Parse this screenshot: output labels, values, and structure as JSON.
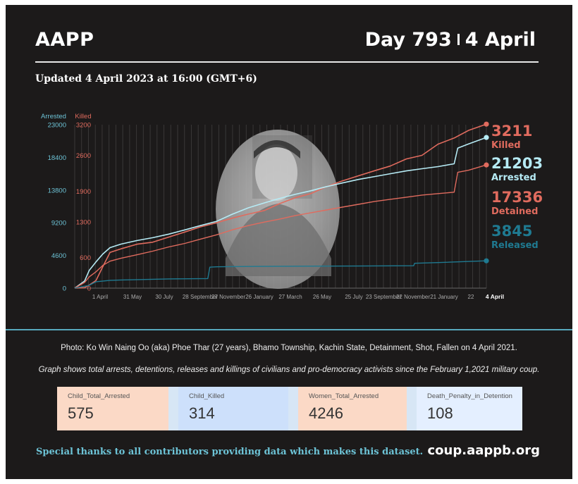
{
  "header": {
    "org": "AAPP",
    "day_label": "Day 793",
    "date_label": "4 April",
    "updated": "Updated 4 April 2023 at 16:00 (GMT+6)"
  },
  "colors": {
    "background": "#1c1a1a",
    "killed": "#e06b5e",
    "arrested": "#b6ebf5",
    "detained": "#e06b5e",
    "released": "#1f7a91",
    "accent": "#6dc3d6"
  },
  "photo": {
    "icon": "portrait-photo-icon"
  },
  "chart_data": {
    "type": "line",
    "left_axis": {
      "label": "Arrested",
      "ticks": [
        0,
        4600,
        9200,
        13800,
        18400,
        23000
      ],
      "ylim": [
        0,
        23000
      ]
    },
    "right_axis": {
      "label": "Killed",
      "ticks": [
        0,
        600,
        1300,
        1900,
        2600,
        3200
      ],
      "ylim": [
        0,
        3200
      ]
    },
    "x_ticks": [
      "1 April",
      "31 May",
      "30 July",
      "28 September",
      "27 November",
      "26 January",
      "27 March",
      "26 May",
      "25 July",
      "23 September",
      "22 November",
      "21 January",
      "22",
      "4 April"
    ],
    "xlim": [
      "2021-02-01",
      "2023-04-04"
    ],
    "grid": "vertical",
    "series": [
      {
        "name": "Killed",
        "axis": "right",
        "final_value": "3211",
        "points": [
          [
            "2021-02-01",
            0
          ],
          [
            "2021-02-20",
            10
          ],
          [
            "2021-03-01",
            60
          ],
          [
            "2021-03-14",
            150
          ],
          [
            "2021-03-27",
            420
          ],
          [
            "2021-04-10",
            700
          ],
          [
            "2021-05-01",
            770
          ],
          [
            "2021-06-01",
            860
          ],
          [
            "2021-07-01",
            900
          ],
          [
            "2021-08-01",
            1000
          ],
          [
            "2021-09-01",
            1100
          ],
          [
            "2021-10-01",
            1200
          ],
          [
            "2021-11-01",
            1280
          ],
          [
            "2021-12-01",
            1370
          ],
          [
            "2022-01-01",
            1450
          ],
          [
            "2022-02-01",
            1520
          ],
          [
            "2022-03-01",
            1650
          ],
          [
            "2022-04-01",
            1770
          ],
          [
            "2022-05-01",
            1850
          ],
          [
            "2022-06-01",
            1990
          ],
          [
            "2022-07-01",
            2100
          ],
          [
            "2022-08-01",
            2200
          ],
          [
            "2022-09-01",
            2300
          ],
          [
            "2022-10-01",
            2390
          ],
          [
            "2022-11-01",
            2530
          ],
          [
            "2022-12-01",
            2600
          ],
          [
            "2023-01-01",
            2820
          ],
          [
            "2023-02-01",
            2940
          ],
          [
            "2023-03-01",
            3090
          ],
          [
            "2023-04-04",
            3211
          ]
        ]
      },
      {
        "name": "Arrested",
        "axis": "left",
        "final_value": "21203",
        "points": [
          [
            "2021-02-01",
            0
          ],
          [
            "2021-02-20",
            1000
          ],
          [
            "2021-03-01",
            2500
          ],
          [
            "2021-03-14",
            3700
          ],
          [
            "2021-03-27",
            4800
          ],
          [
            "2021-04-10",
            5700
          ],
          [
            "2021-05-01",
            6200
          ],
          [
            "2021-06-01",
            6700
          ],
          [
            "2021-07-01",
            7100
          ],
          [
            "2021-08-01",
            7600
          ],
          [
            "2021-09-01",
            8200
          ],
          [
            "2021-10-01",
            8800
          ],
          [
            "2021-11-01",
            9400
          ],
          [
            "2021-12-01",
            10400
          ],
          [
            "2022-01-01",
            11300
          ],
          [
            "2022-02-01",
            12000
          ],
          [
            "2022-03-01",
            12600
          ],
          [
            "2022-04-01",
            13200
          ],
          [
            "2022-05-01",
            13700
          ],
          [
            "2022-06-01",
            14300
          ],
          [
            "2022-07-01",
            14800
          ],
          [
            "2022-08-01",
            15300
          ],
          [
            "2022-09-01",
            15700
          ],
          [
            "2022-10-01",
            16100
          ],
          [
            "2022-11-01",
            16500
          ],
          [
            "2022-12-01",
            16800
          ],
          [
            "2023-01-01",
            17100
          ],
          [
            "2023-02-01",
            17500
          ],
          [
            "2023-02-08",
            19700
          ],
          [
            "2023-03-01",
            20300
          ],
          [
            "2023-04-04",
            21203
          ]
        ]
      },
      {
        "name": "Detained",
        "axis": "left",
        "final_value": "17336",
        "points": [
          [
            "2021-02-01",
            0
          ],
          [
            "2021-02-20",
            800
          ],
          [
            "2021-03-01",
            1600
          ],
          [
            "2021-03-14",
            2300
          ],
          [
            "2021-03-27",
            3200
          ],
          [
            "2021-04-10",
            3800
          ],
          [
            "2021-05-01",
            4200
          ],
          [
            "2021-06-01",
            4700
          ],
          [
            "2021-07-01",
            5200
          ],
          [
            "2021-08-01",
            5800
          ],
          [
            "2021-09-01",
            6300
          ],
          [
            "2021-10-01",
            6900
          ],
          [
            "2021-11-01",
            7500
          ],
          [
            "2021-12-01",
            8200
          ],
          [
            "2022-01-01",
            8800
          ],
          [
            "2022-02-01",
            9300
          ],
          [
            "2022-03-01",
            9700
          ],
          [
            "2022-04-01",
            10200
          ],
          [
            "2022-05-01",
            10600
          ],
          [
            "2022-06-01",
            11000
          ],
          [
            "2022-07-01",
            11400
          ],
          [
            "2022-08-01",
            11800
          ],
          [
            "2022-09-01",
            12200
          ],
          [
            "2022-10-01",
            12500
          ],
          [
            "2022-11-01",
            12800
          ],
          [
            "2022-12-01",
            13100
          ],
          [
            "2023-01-01",
            13300
          ],
          [
            "2023-02-01",
            13500
          ],
          [
            "2023-02-08",
            16300
          ],
          [
            "2023-03-01",
            16600
          ],
          [
            "2023-04-04",
            17336
          ]
        ]
      },
      {
        "name": "Released",
        "axis": "left",
        "final_value": "3845",
        "points": [
          [
            "2021-02-01",
            0
          ],
          [
            "2021-03-01",
            400
          ],
          [
            "2021-03-14",
            900
          ],
          [
            "2021-04-10",
            1100
          ],
          [
            "2021-05-01",
            1150
          ],
          [
            "2021-06-01",
            1200
          ],
          [
            "2021-07-01",
            1250
          ],
          [
            "2021-08-01",
            1300
          ],
          [
            "2021-10-15",
            1350
          ],
          [
            "2021-10-19",
            2950
          ],
          [
            "2021-11-01",
            3000
          ],
          [
            "2022-01-01",
            3050
          ],
          [
            "2022-06-01",
            3100
          ],
          [
            "2022-11-15",
            3150
          ],
          [
            "2022-11-17",
            3500
          ],
          [
            "2023-01-01",
            3600
          ],
          [
            "2023-04-04",
            3845
          ]
        ]
      }
    ]
  },
  "captions": {
    "photo": "Photo: Ko Win Naing Oo (aka) Phoe Thar (27 years), Bhamo Township, Kachin State, Detainment, Shot, Fallen on 4 April 2021.",
    "graph": "Graph shows total arrests, detentions, releases and killings of civilians and pro-democracy activists since the February 1,2021 military coup."
  },
  "stats": [
    {
      "label": "Child_Total_Arrested",
      "value": "575",
      "color": "#fbd9c6"
    },
    {
      "label": "Child_Killed",
      "value": "314",
      "color": "#cde0fb"
    },
    {
      "label": "Women_Total_Arrested",
      "value": "4246",
      "color": "#fbd9c6"
    },
    {
      "label": "Death_Penalty_in_Detention",
      "value": "108",
      "color": "#e4efff"
    }
  ],
  "footer": {
    "thanks": "Special thanks to all contributors providing data which makes this dataset.",
    "site": "coup.aappb.org"
  }
}
